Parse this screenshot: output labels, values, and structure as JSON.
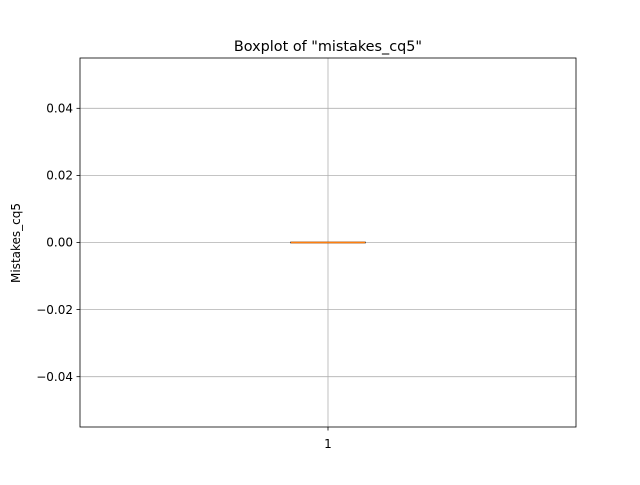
{
  "chart_data": {
    "type": "boxplot",
    "title": "Boxplot of \"mistakes_cq5\"",
    "xlabel": "",
    "ylabel": "Mistakes_cq5",
    "categories": [
      "1"
    ],
    "boxes": [
      {
        "category": "1",
        "whisker_low": 0.0,
        "q1": 0.0,
        "median": 0.0,
        "q3": 0.0,
        "whisker_high": 0.0,
        "outliers": []
      }
    ],
    "xlim": [
      0.5,
      1.5
    ],
    "ylim": [
      -0.055,
      0.055
    ],
    "yticks": [
      -0.04,
      -0.02,
      0.0,
      0.02,
      0.04
    ],
    "ytick_labels": [
      "−0.04",
      "−0.02",
      "0.00",
      "0.02",
      "0.04"
    ],
    "grid": true,
    "colors": {
      "median": "#ff7f0e",
      "box": "#000000",
      "grid": "#b0b0b0",
      "axes": "#000000"
    }
  }
}
